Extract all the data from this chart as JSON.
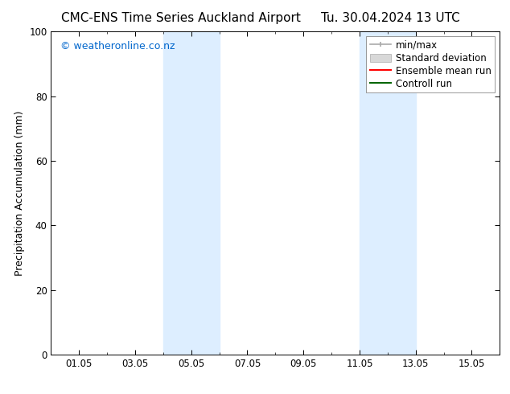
{
  "title_left": "CMC-ENS Time Series Auckland Airport",
  "title_right": "Tu. 30.04.2024 13 UTC",
  "ylabel": "Precipitation Accumulation (mm)",
  "ylim": [
    0,
    100
  ],
  "yticks": [
    0,
    20,
    40,
    60,
    80,
    100
  ],
  "x_tick_labels": [
    "01.05",
    "03.05",
    "05.05",
    "07.05",
    "09.05",
    "11.05",
    "13.05",
    "15.05"
  ],
  "x_tick_positions": [
    1,
    3,
    5,
    7,
    9,
    11,
    13,
    15
  ],
  "x_min": 0,
  "x_max": 16,
  "background_color": "#ffffff",
  "plot_bg_color": "#ffffff",
  "watermark_text": "© weatheronline.co.nz",
  "watermark_color": "#0066cc",
  "shaded_regions": [
    {
      "x_start": 4.0,
      "x_end": 6.0,
      "color": "#ddeeff"
    },
    {
      "x_start": 11.0,
      "x_end": 13.0,
      "color": "#ddeeff"
    }
  ],
  "legend_items": [
    {
      "label": "min/max",
      "color": "#aaaaaa",
      "style": "line_with_bar"
    },
    {
      "label": "Standard deviation",
      "color": "#cccccc",
      "style": "rect"
    },
    {
      "label": "Ensemble mean run",
      "color": "#ff0000",
      "style": "line"
    },
    {
      "label": "Controll run",
      "color": "#006600",
      "style": "line"
    }
  ],
  "title_fontsize": 11,
  "tick_fontsize": 8.5,
  "label_fontsize": 9,
  "legend_fontsize": 8.5,
  "watermark_fontsize": 9
}
